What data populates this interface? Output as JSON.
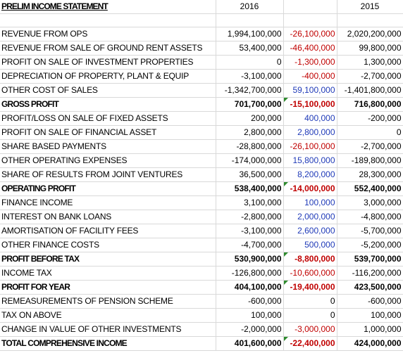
{
  "header": {
    "title": "PRELIM INCOME STATEMENT",
    "col_2016": "2016",
    "col_variance": "",
    "col_2015": "2015"
  },
  "rows": [
    {
      "label": "REVENUE FROM OPS",
      "v2016": "1,994,100,000",
      "var": "-26,100,000",
      "var_color": "neg",
      "v2015": "2,020,200,000",
      "bold": false,
      "flag": false
    },
    {
      "label": "REVENUE FROM SALE OF GROUND RENT ASSETS",
      "v2016": "53,400,000",
      "var": "-46,400,000",
      "var_color": "neg",
      "v2015": "99,800,000",
      "bold": false,
      "flag": false
    },
    {
      "label": "PROFIT ON SALE OF INVESTMENT PROPERTIES",
      "v2016": "0",
      "var": "-1,300,000",
      "var_color": "neg",
      "v2015": "1,300,000",
      "bold": false,
      "flag": false
    },
    {
      "label": "DEPRECIATION OF PROPERTY, PLANT & EQUIP",
      "v2016": "-3,100,000",
      "var": "-400,000",
      "var_color": "neg",
      "v2015": "-2,700,000",
      "bold": false,
      "flag": false
    },
    {
      "label": "OTHER COST OF SALES",
      "v2016": "-1,342,700,000",
      "var": "59,100,000",
      "var_color": "pos",
      "v2015": "-1,401,800,000",
      "bold": false,
      "flag": false
    },
    {
      "label": "GROSS PROFIT",
      "v2016": "701,700,000",
      "var": "-15,100,000",
      "var_color": "neg",
      "v2015": "716,800,000",
      "bold": true,
      "flag": true
    },
    {
      "label": "PROFIT/LOSS ON SALE OF FIXED ASSETS",
      "v2016": "200,000",
      "var": "400,000",
      "var_color": "pos",
      "v2015": "-200,000",
      "bold": false,
      "flag": false
    },
    {
      "label": "PROFIT ON SALE OF FINANCIAL ASSET",
      "v2016": "2,800,000",
      "var": "2,800,000",
      "var_color": "pos",
      "v2015": "0",
      "bold": false,
      "flag": false
    },
    {
      "label": "SHARE BASED PAYMENTS",
      "v2016": "-28,800,000",
      "var": "-26,100,000",
      "var_color": "neg",
      "v2015": "-2,700,000",
      "bold": false,
      "flag": false
    },
    {
      "label": "OTHER OPERATING EXPENSES",
      "v2016": "-174,000,000",
      "var": "15,800,000",
      "var_color": "pos",
      "v2015": "-189,800,000",
      "bold": false,
      "flag": false
    },
    {
      "label": "SHARE OF RESULTS FROM JOINT VENTURES",
      "v2016": "36,500,000",
      "var": "8,200,000",
      "var_color": "pos",
      "v2015": "28,300,000",
      "bold": false,
      "flag": false
    },
    {
      "label": "OPERATING PROFIT",
      "v2016": "538,400,000",
      "var": "-14,000,000",
      "var_color": "neg",
      "v2015": "552,400,000",
      "bold": true,
      "flag": true
    },
    {
      "label": "FINANCE INCOME",
      "v2016": "3,100,000",
      "var": "100,000",
      "var_color": "pos",
      "v2015": "3,000,000",
      "bold": false,
      "flag": false
    },
    {
      "label": "INTEREST ON BANK LOANS",
      "v2016": "-2,800,000",
      "var": "2,000,000",
      "var_color": "pos",
      "v2015": "-4,800,000",
      "bold": false,
      "flag": false
    },
    {
      "label": "AMORTISATION OF FACILITY FEES",
      "v2016": "-3,100,000",
      "var": "2,600,000",
      "var_color": "pos",
      "v2015": "-5,700,000",
      "bold": false,
      "flag": false
    },
    {
      "label": "OTHER FINANCE COSTS",
      "v2016": "-4,700,000",
      "var": "500,000",
      "var_color": "pos",
      "v2015": "-5,200,000",
      "bold": false,
      "flag": false
    },
    {
      "label": "PROFIT BEFORE TAX",
      "v2016": "530,900,000",
      "var": "-8,800,000",
      "var_color": "neg",
      "v2015": "539,700,000",
      "bold": true,
      "flag": true
    },
    {
      "label": "INCOME TAX",
      "v2016": "-126,800,000",
      "var": "-10,600,000",
      "var_color": "neg",
      "v2015": "-116,200,000",
      "bold": false,
      "flag": false
    },
    {
      "label": "PROFIT FOR YEAR",
      "v2016": "404,100,000",
      "var": "-19,400,000",
      "var_color": "neg",
      "v2015": "423,500,000",
      "bold": true,
      "flag": true
    },
    {
      "label": "REMEASUREMENTS OF PENSION SCHEME",
      "v2016": "-600,000",
      "var": "0",
      "var_color": "blk",
      "v2015": "-600,000",
      "bold": false,
      "flag": false
    },
    {
      "label": "TAX ON ABOVE",
      "v2016": "100,000",
      "var": "0",
      "var_color": "blk",
      "v2015": "100,000",
      "bold": false,
      "flag": false
    },
    {
      "label": "CHANGE IN VALUE OF OTHER INVESTMENTS",
      "v2016": "-2,000,000",
      "var": "-3,000,000",
      "var_color": "neg",
      "v2015": "1,000,000",
      "bold": false,
      "flag": false
    },
    {
      "label": "TOTAL COMPREHENSIVE INCOME",
      "v2016": "401,600,000",
      "var": "-22,400,000",
      "var_color": "neg",
      "v2015": "424,000,000",
      "bold": true,
      "flag": true
    }
  ],
  "colors": {
    "negative": "#c00000",
    "positive": "#1f3ab8",
    "flag": "#2e8b2e",
    "gridline": "#d9d9d9"
  }
}
